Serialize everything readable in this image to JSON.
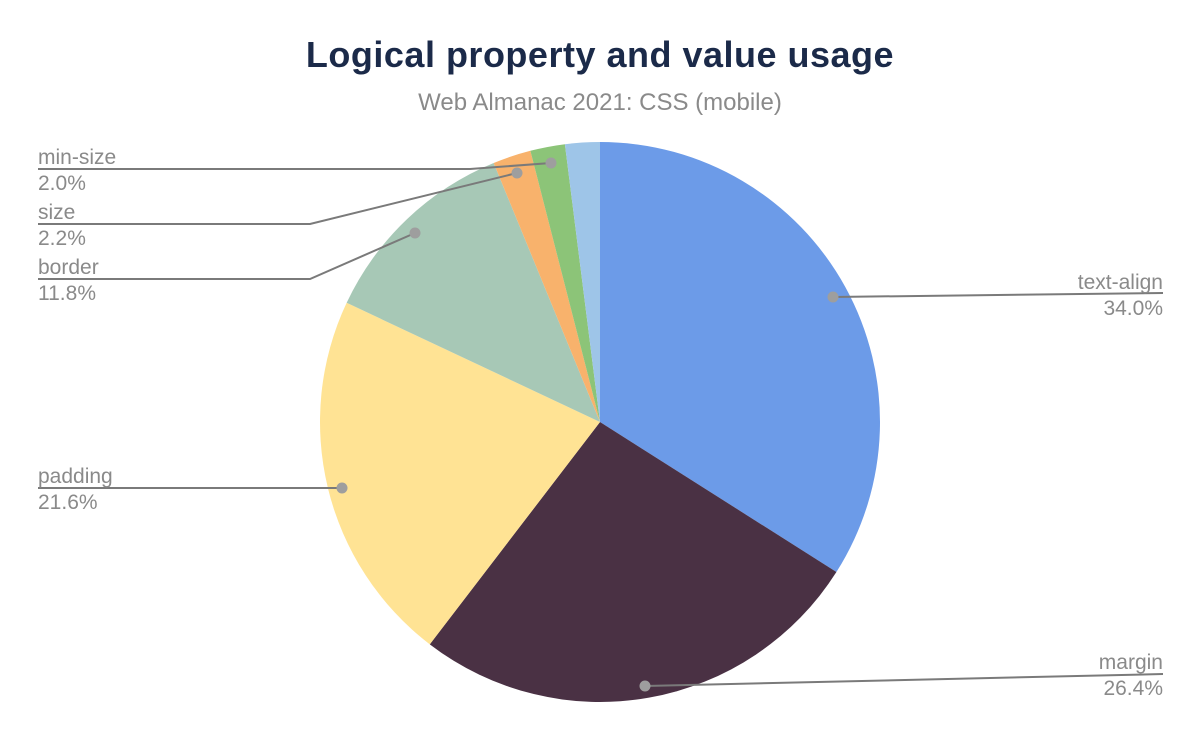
{
  "header": {
    "title": "Logical property and value usage",
    "subtitle": "Web Almanac 2021: CSS (mobile)"
  },
  "colors": {
    "background": "#ffffff",
    "title_text": "#1b2a49",
    "subtitle_text": "#8a8a8a",
    "callout_text": "#8a8a8a",
    "leader_line": "#7a7a7a",
    "leader_dot": "#9e9e9e"
  },
  "chart_data": {
    "type": "pie",
    "title": "Logical property and value usage",
    "subtitle": "Web Almanac 2021: CSS (mobile)",
    "direction": "clockwise",
    "start_angle_deg": 0,
    "total": 100,
    "value_unit": "%",
    "legend_position": "none",
    "labels_style": "external callout labels with gray leader lines and dots",
    "slices": [
      {
        "label": "text-align",
        "value": 34.0,
        "display": "34.0%",
        "color": "#6c9be8",
        "labeled": true
      },
      {
        "label": "margin",
        "value": 26.4,
        "display": "26.4%",
        "color": "#4a3144",
        "labeled": true
      },
      {
        "label": "padding",
        "value": 21.6,
        "display": "21.6%",
        "color": "#ffe394",
        "labeled": true
      },
      {
        "label": "border",
        "value": 11.8,
        "display": "11.8%",
        "color": "#a7c8b6",
        "labeled": true
      },
      {
        "label": "size",
        "value": 2.2,
        "display": "2.2%",
        "color": "#f8b26c",
        "labeled": true
      },
      {
        "label": "min-size",
        "value": 2.0,
        "display": "2.0%",
        "color": "#8cc478",
        "labeled": true
      },
      {
        "label": "",
        "value": 2.0,
        "display": "2.0%",
        "color": "#9ec5e8",
        "labeled": false
      }
    ]
  }
}
